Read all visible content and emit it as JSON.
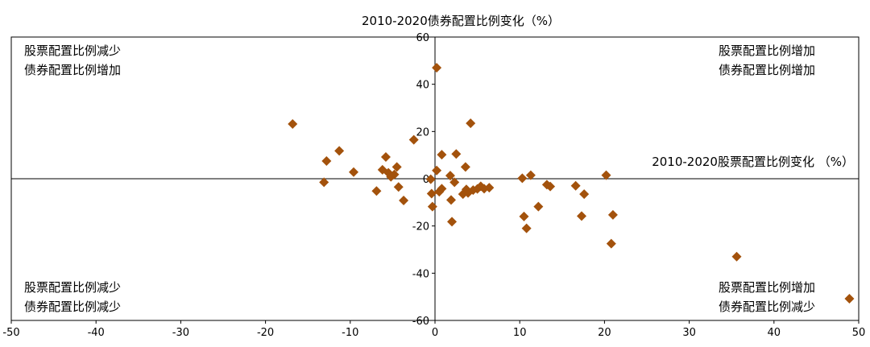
{
  "chart_data": {
    "type": "scatter",
    "title": "2010-2020债券配置比例变化（%）",
    "xlabel": "2010-2020股票配置比例变化 （%）",
    "ylabel": "",
    "xlim": [
      -50,
      50
    ],
    "ylim": [
      -60,
      60
    ],
    "x_ticks": [
      -50,
      -40,
      -30,
      -20,
      -10,
      0,
      10,
      20,
      30,
      40,
      50
    ],
    "y_ticks": [
      -60,
      -40,
      -20,
      0,
      20,
      40,
      60
    ],
    "x_tick_labels": [
      "-50",
      "-40",
      "-30",
      "-20",
      "-10",
      "0",
      "10",
      "20",
      "30",
      "40",
      "50"
    ],
    "y_tick_labels": [
      "-60",
      "-40",
      "-20",
      "0",
      "20",
      "40",
      "60"
    ],
    "grid": false,
    "marker": "diamond",
    "marker_color": "#a3520c",
    "quadrant_labels": {
      "top_left": [
        "股票配置比例减少",
        "债券配置比例增加"
      ],
      "top_right": [
        "股票配置比例增加",
        "债券配置比例增加"
      ],
      "bottom_left": [
        "股票配置比例减少",
        "债券配置比例减少"
      ],
      "bottom_right": [
        "股票配置比例增加",
        "债券配置比例减少"
      ]
    },
    "points": [
      {
        "x": -16.8,
        "y": 23.2
      },
      {
        "x": -12.8,
        "y": 7.5
      },
      {
        "x": -13.1,
        "y": -1.5
      },
      {
        "x": -11.3,
        "y": 11.8
      },
      {
        "x": -9.6,
        "y": 2.8
      },
      {
        "x": -6.9,
        "y": -5.2
      },
      {
        "x": -6.2,
        "y": 3.8
      },
      {
        "x": -5.8,
        "y": 9.2
      },
      {
        "x": -5.5,
        "y": 2.5
      },
      {
        "x": -5.2,
        "y": 0.8
      },
      {
        "x": -4.8,
        "y": 1.8
      },
      {
        "x": -4.5,
        "y": 5.0
      },
      {
        "x": -4.3,
        "y": -3.5
      },
      {
        "x": -3.7,
        "y": -9.2
      },
      {
        "x": -2.5,
        "y": 16.5
      },
      {
        "x": -0.5,
        "y": -0.2
      },
      {
        "x": -0.4,
        "y": -6.3
      },
      {
        "x": -0.3,
        "y": -11.8
      },
      {
        "x": 0.2,
        "y": 3.5
      },
      {
        "x": 0.2,
        "y": 47.0
      },
      {
        "x": 0.5,
        "y": -5.5
      },
      {
        "x": 0.8,
        "y": -4.2
      },
      {
        "x": 0.8,
        "y": 10.2
      },
      {
        "x": 1.8,
        "y": 1.3
      },
      {
        "x": 1.9,
        "y": -9.0
      },
      {
        "x": 2.0,
        "y": -18.2
      },
      {
        "x": 2.3,
        "y": -1.5
      },
      {
        "x": 2.5,
        "y": 10.5
      },
      {
        "x": 3.3,
        "y": -6.5
      },
      {
        "x": 3.6,
        "y": 5.0
      },
      {
        "x": 3.7,
        "y": -4.5
      },
      {
        "x": 3.9,
        "y": -6.0
      },
      {
        "x": 4.2,
        "y": 23.5
      },
      {
        "x": 4.5,
        "y": -4.8
      },
      {
        "x": 5.0,
        "y": -4.3
      },
      {
        "x": 5.4,
        "y": -3.2
      },
      {
        "x": 5.8,
        "y": -4.2
      },
      {
        "x": 6.4,
        "y": -3.8
      },
      {
        "x": 10.3,
        "y": 0.2
      },
      {
        "x": 10.5,
        "y": -16.0
      },
      {
        "x": 10.8,
        "y": -21.0
      },
      {
        "x": 11.3,
        "y": 1.5
      },
      {
        "x": 12.2,
        "y": -11.8
      },
      {
        "x": 13.2,
        "y": -2.5
      },
      {
        "x": 13.6,
        "y": -3.3
      },
      {
        "x": 16.6,
        "y": -3.0
      },
      {
        "x": 17.3,
        "y": -15.8
      },
      {
        "x": 17.6,
        "y": -6.5
      },
      {
        "x": 20.2,
        "y": 1.5
      },
      {
        "x": 20.8,
        "y": -27.5
      },
      {
        "x": 21.0,
        "y": -15.3
      },
      {
        "x": 35.6,
        "y": -33.0
      },
      {
        "x": 48.9,
        "y": -50.8
      }
    ]
  }
}
